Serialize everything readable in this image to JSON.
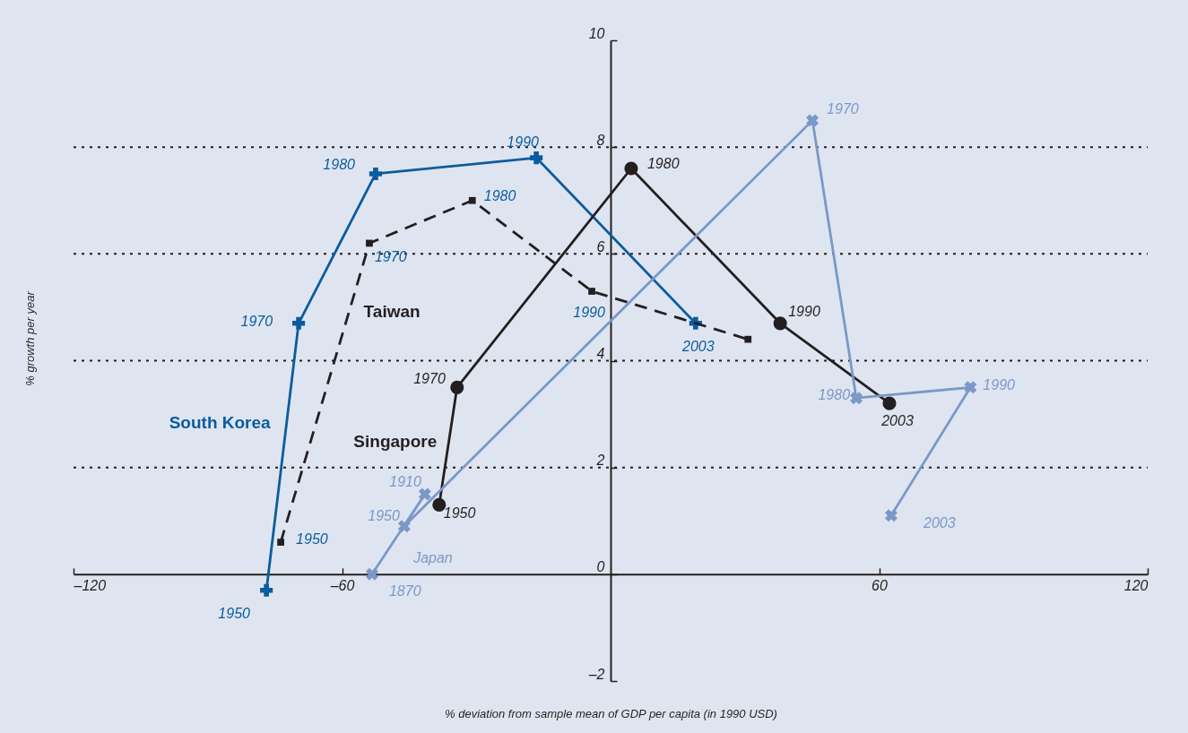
{
  "chart_data": {
    "type": "line",
    "xlabel": "% deviation from sample mean of GDP per capita (in 1990 USD)",
    "ylabel": "% growth per year",
    "xlim": [
      -120,
      120
    ],
    "xticks": [
      {
        "value": -120,
        "label": "–120"
      },
      {
        "value": -60,
        "label": "–60"
      },
      60,
      120
    ],
    "ylim": [
      -2,
      10
    ],
    "yticks": [
      {
        "value": -2,
        "label": "–2"
      },
      0,
      2,
      4,
      6,
      8,
      10
    ],
    "grid": "y",
    "series": [
      {
        "name": "South Korea",
        "color": "#0b5c9e",
        "marker": "cross",
        "line_style": "solid",
        "x": [
          -76.9,
          -69.7,
          -52.5,
          -16.6,
          19.0
        ],
        "values": [
          -0.3,
          4.7,
          7.5,
          7.8,
          4.7
        ]
      },
      {
        "name": "Taiwan",
        "color": "#231f20",
        "marker": "square",
        "line_style": "dashed",
        "x": [
          -73.7,
          -53.9,
          -30.9,
          -4.2,
          30.7
        ],
        "values": [
          0.6,
          6.2,
          7.0,
          5.3,
          4.4
        ]
      },
      {
        "name": "Singapore",
        "color": "#231f20",
        "marker": "circle",
        "line_style": "solid",
        "x": [
          -38.3,
          -34.3,
          4.6,
          37.9,
          62.3
        ],
        "values": [
          1.3,
          3.5,
          7.6,
          4.7,
          3.2
        ]
      },
      {
        "name": "Japan",
        "color": "#7a98c8",
        "marker": "cross",
        "line_style": "solid",
        "x": [
          -53.3,
          -41.5,
          -46.1,
          45.1,
          54.9,
          80.4,
          62.7
        ],
        "values": [
          0,
          1.5,
          0.9,
          8.5,
          3.3,
          3.5,
          1.1
        ]
      }
    ],
    "annotations": [
      {
        "text": "1950",
        "x": -76.9,
        "y": -0.3
      },
      {
        "text": "1970",
        "x": -69.7,
        "y": 4.7
      },
      {
        "text": "1980",
        "x": -52.5,
        "y": 7.5
      },
      {
        "text": "1990",
        "x": -16.6,
        "y": 7.8
      },
      {
        "text": "2003",
        "x": 19.0,
        "y": 4.7
      },
      {
        "text": "1950",
        "x": -73.7,
        "y": 0.6
      },
      {
        "text": "1970",
        "x": -53.9,
        "y": 6.2
      },
      {
        "text": "1980",
        "x": -30.9,
        "y": 7.0
      },
      {
        "text": "1990",
        "x": -4.2,
        "y": 5.3
      },
      {
        "text": "1950",
        "x": -38.3,
        "y": 1.3
      },
      {
        "text": "1970",
        "x": -34.3,
        "y": 3.5
      },
      {
        "text": "1980",
        "x": 4.6,
        "y": 7.6
      },
      {
        "text": "1990",
        "x": 37.9,
        "y": 4.7
      },
      {
        "text": "2003",
        "x": 62.3,
        "y": 3.2
      },
      {
        "text": "1870",
        "x": -53.3,
        "y": 0
      },
      {
        "text": "1910",
        "x": -41.5,
        "y": 1.5
      },
      {
        "text": "1950",
        "x": -46.1,
        "y": 0.9
      },
      {
        "text": "1970",
        "x": 45.1,
        "y": 8.5
      },
      {
        "text": "1980",
        "x": 54.9,
        "y": 3.3
      },
      {
        "text": "1990",
        "x": 80.4,
        "y": 3.5
      },
      {
        "text": "2003",
        "x": 62.7,
        "y": 1.1
      }
    ]
  }
}
